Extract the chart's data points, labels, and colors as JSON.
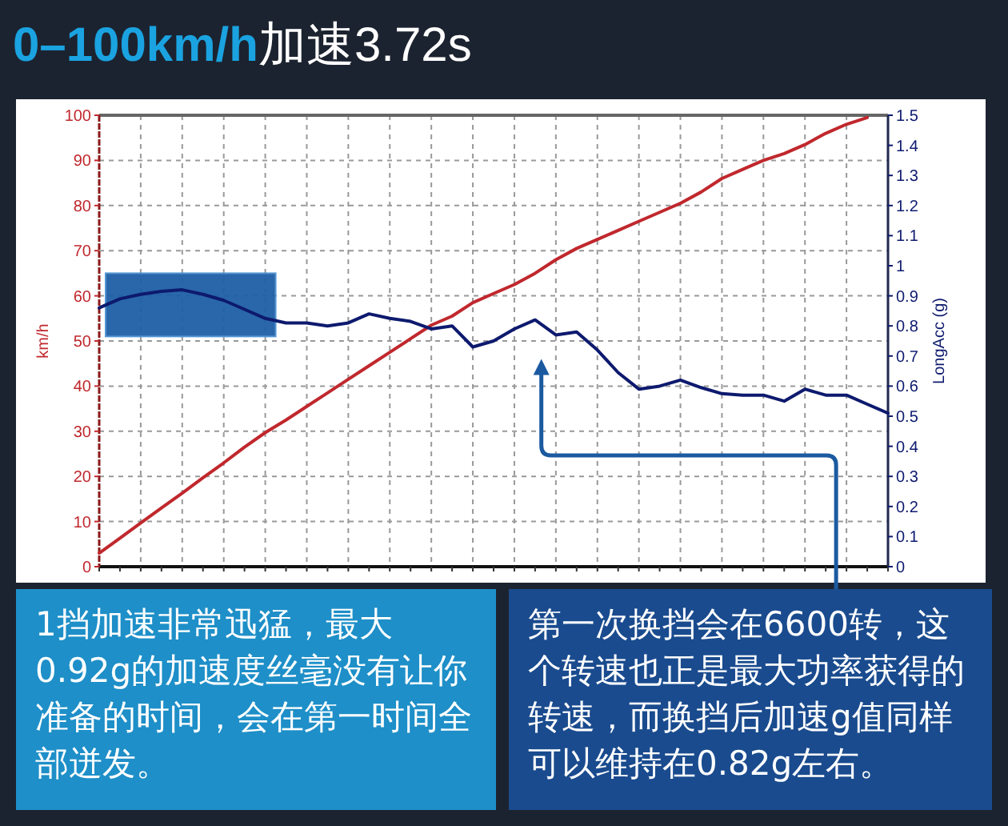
{
  "chart_data": {
    "type": "line",
    "title": "0–100km/h加速3.72s",
    "categories": [
      null,
      null,
      null,
      null,
      null,
      null,
      null,
      null,
      null,
      null,
      null,
      null,
      null,
      null,
      null,
      null,
      null,
      null,
      null,
      null,
      null,
      null,
      null,
      null,
      null,
      null,
      null,
      null,
      null,
      null,
      null,
      null,
      null,
      null,
      null,
      null,
      null,
      null,
      null
    ],
    "series": [
      {
        "color": "#c0282d",
        "values": [
          3,
          6.3,
          9.7,
          13,
          16.3,
          19.7,
          23,
          26.5,
          29.7,
          32.5,
          35.5,
          38.5,
          41.5,
          44.5,
          47.5,
          50.5,
          53.5,
          55.5,
          58.5,
          60.5,
          62.5,
          65,
          68,
          70.5,
          72.5,
          74.5,
          76.5,
          78.5,
          80.5,
          83,
          86,
          88,
          90,
          91.5,
          93.5,
          96,
          98,
          99.5,
          null
        ]
      },
      {
        "color": "#0d1a6e",
        "axis": "y2",
        "values": [
          0.86,
          0.89,
          0.905,
          0.915,
          0.92,
          0.905,
          0.885,
          0.855,
          0.825,
          0.81,
          0.81,
          0.8,
          0.81,
          0.84,
          0.825,
          0.815,
          0.79,
          0.8,
          0.73,
          0.75,
          0.79,
          0.82,
          0.77,
          0.78,
          0.72,
          0.645,
          0.59,
          0.6,
          0.62,
          0.595,
          0.575,
          0.57,
          0.57,
          0.55,
          0.59,
          0.57,
          0.57,
          0.54,
          0.51
        ]
      }
    ],
    "ylabel": "km/h",
    "y2label": "LongAcc (g)",
    "ylim": [
      0,
      100
    ],
    "yticks": [
      0,
      10,
      20,
      30,
      40,
      50,
      60,
      70,
      80,
      90,
      100
    ],
    "y2lim": [
      0,
      1.5
    ],
    "y2ticks": [
      0,
      0.1,
      0.2,
      0.3,
      0.4,
      0.5,
      0.6,
      0.7,
      0.8,
      0.9,
      1,
      1.1,
      1.2,
      1.3,
      1.4,
      1.5
    ],
    "grid": true,
    "annotations": [
      "1挡加速非常迅猛，最大0.92g的加速度丝毫没有让你准备的时间，会在第一时间全部迸发。",
      "第一次换挡会在6600转，这个转速也正是最大功率获得的转速，而换挡后加速g值同样可以维持在0.82g左右。"
    ]
  }
}
